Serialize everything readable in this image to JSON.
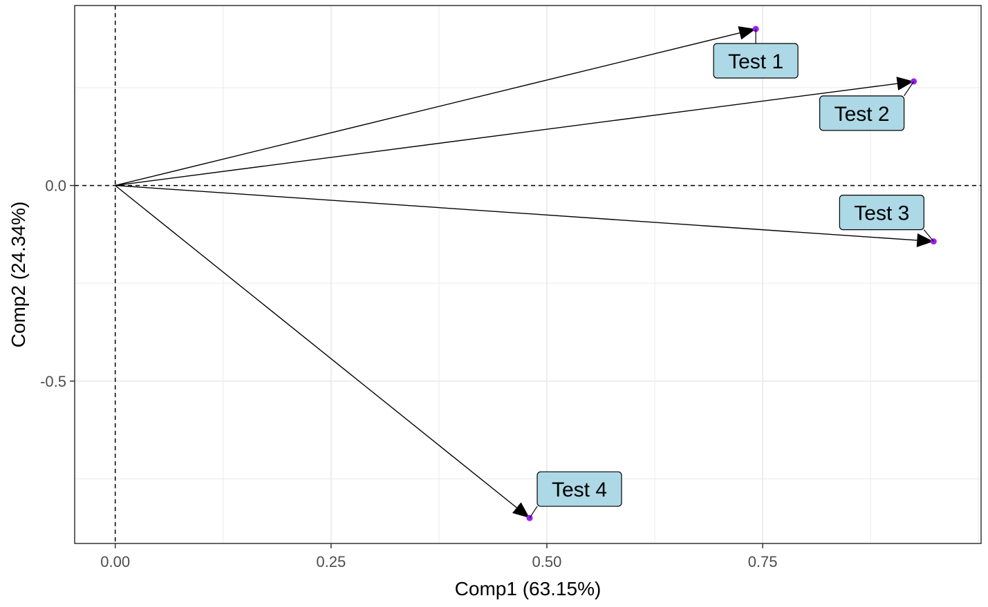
{
  "chart_data": {
    "type": "scatter",
    "title": "",
    "xlabel": "Comp1 (63.15%)",
    "ylabel": "Comp2 (24.34%)",
    "xlim": [
      -0.047,
      1.003
    ],
    "ylim": [
      -0.915,
      0.46
    ],
    "x_ticks": [
      {
        "value": 0.0,
        "label": "0.00"
      },
      {
        "value": 0.25,
        "label": "0.25"
      },
      {
        "value": 0.5,
        "label": "0.50"
      },
      {
        "value": 0.75,
        "label": "0.75"
      }
    ],
    "y_ticks": [
      {
        "value": 0.0,
        "label": "0.0"
      },
      {
        "value": -0.5,
        "label": "-0.5"
      }
    ],
    "grid": true,
    "reference_lines": {
      "x": 0,
      "y": 0,
      "style": "dashed"
    },
    "arrows_from_origin": true,
    "points": [
      {
        "label": "Test 1",
        "x": 0.742,
        "y": 0.4
      },
      {
        "label": "Test 2",
        "x": 0.925,
        "y": 0.266
      },
      {
        "label": "Test 3",
        "x": 0.948,
        "y": -0.143
      },
      {
        "label": "Test 4",
        "x": 0.48,
        "y": -0.85
      }
    ],
    "colors": {
      "point": "#a020f0",
      "label_fill": "#add8e6",
      "arrow": "#000000",
      "grid": "#ebebeb",
      "panel_border": "#333333"
    }
  }
}
